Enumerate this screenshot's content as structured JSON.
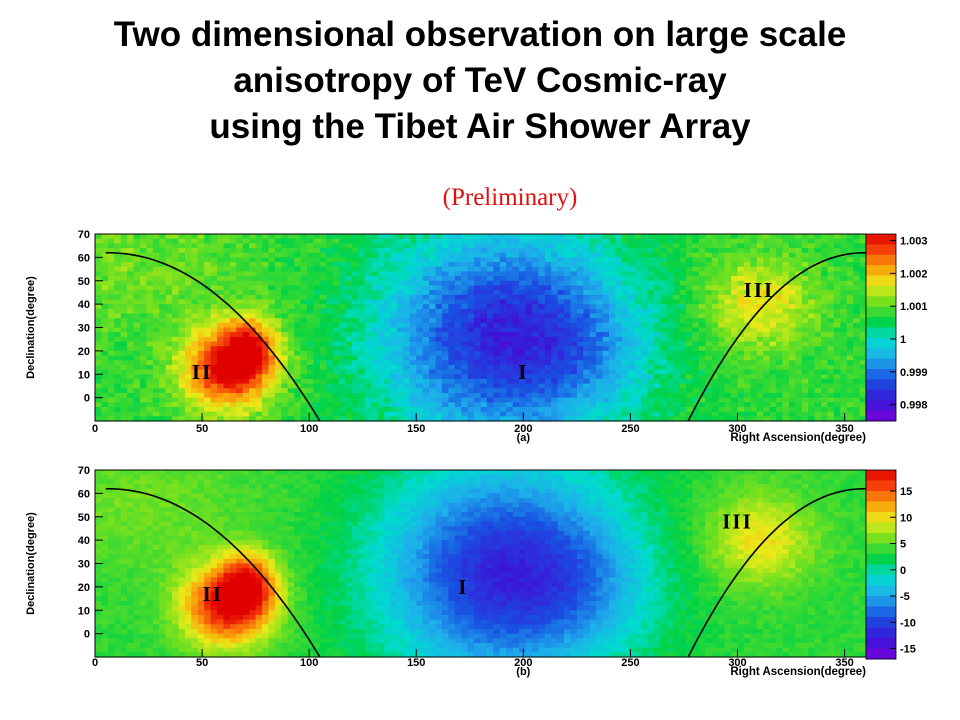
{
  "title": {
    "line1": "Two dimensional observation on large scale",
    "line2": "anisotropy of TeV Cosmic-ray",
    "line3": "using the Tibet Air Shower Array"
  },
  "subtitle": "(Preliminary)",
  "chart_data": [
    {
      "type": "heatmap",
      "panel_label": "(a)",
      "xlabel": "Right Ascension(degree)",
      "ylabel": "Declination(degree)",
      "xlim": [
        0,
        360
      ],
      "ylim": [
        -10,
        70
      ],
      "xticks": [
        "0",
        "50",
        "100",
        "150",
        "200",
        "250",
        "300",
        "350"
      ],
      "yticks": [
        "70",
        "60",
        "50",
        "40",
        "30",
        "20",
        "10",
        "0"
      ],
      "colorbar": {
        "ticks": [
          "1.003",
          "1.002",
          "1.001",
          "1",
          "0.999",
          "0.998"
        ],
        "range": [
          0.9975,
          1.0032
        ]
      },
      "regions": [
        {
          "label": "I",
          "ra": 200,
          "dec": 8
        },
        {
          "label": "II",
          "ra": 50,
          "dec": 8
        },
        {
          "label": "III",
          "ra": 310,
          "dec": 43
        }
      ]
    },
    {
      "type": "heatmap",
      "panel_label": "(b)",
      "xlabel": "Right Ascension(degree)",
      "ylabel": "Declination(degree)",
      "xlim": [
        0,
        360
      ],
      "ylim": [
        -10,
        70
      ],
      "xticks": [
        "0",
        "50",
        "100",
        "150",
        "200",
        "250",
        "300",
        "350"
      ],
      "yticks": [
        "70",
        "60",
        "50",
        "40",
        "30",
        "20",
        "10",
        "0"
      ],
      "colorbar": {
        "ticks": [
          "15",
          "10",
          "5",
          "0",
          "-5",
          "-10",
          "-15"
        ],
        "range": [
          -17,
          19
        ]
      },
      "regions": [
        {
          "label": "I",
          "ra": 172,
          "dec": 17
        },
        {
          "label": "II",
          "ra": 55,
          "dec": 14
        },
        {
          "label": "III",
          "ra": 300,
          "dec": 45
        }
      ]
    }
  ]
}
